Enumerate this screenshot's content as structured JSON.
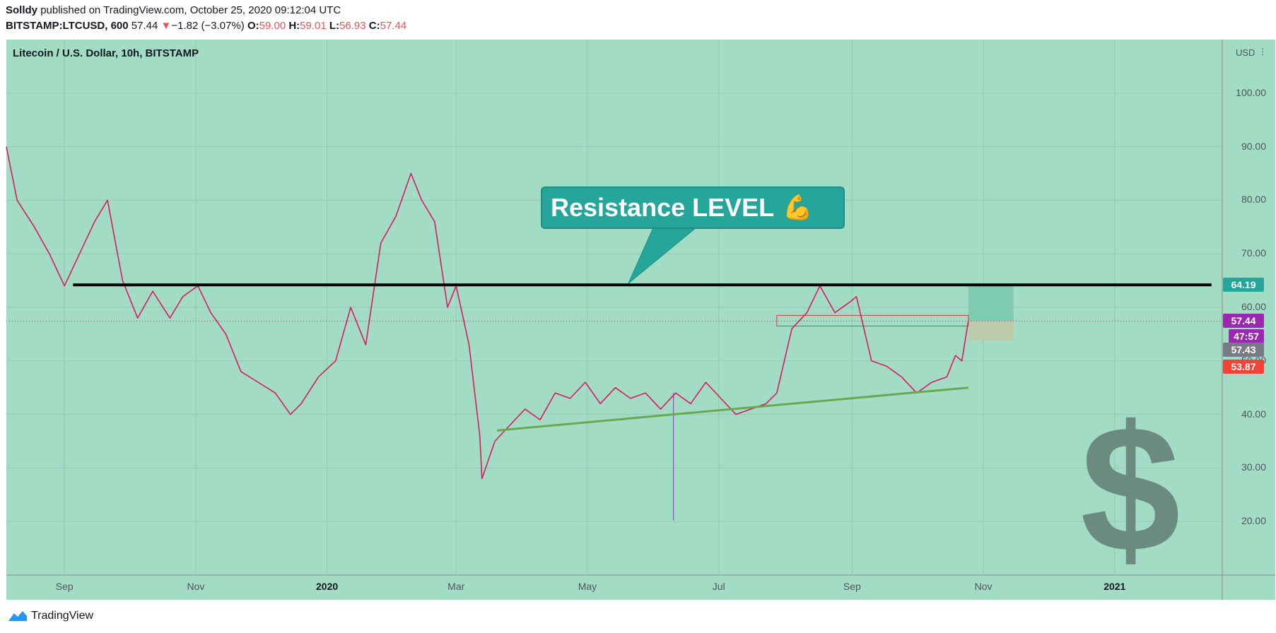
{
  "header": {
    "author": "Solldy",
    "published_text": "published on TradingView.com, October 25, 2020 09:12:04 UTC",
    "symbol": "BITSTAMP:LTCUSD, 600",
    "last": "57.44",
    "change_arrow": "▼",
    "change": "−1.82 (−3.07%)",
    "open_label": "O:",
    "open": "59.00",
    "high_label": "H:",
    "high": "59.01",
    "low_label": "L:",
    "low": "56.93",
    "close_label": "C:",
    "close": "57.44"
  },
  "legend": "Litecoin / U.S. Dollar, 10h, BITSTAMP",
  "annotation": {
    "text": "Resistance LEVEL",
    "emoji": "💪"
  },
  "price_axis": {
    "currency": "USD",
    "settings_icon": "ellipsis-icon",
    "ticks": [
      "100.00",
      "90.00",
      "80.00",
      "70.00",
      "60.00",
      "50.00",
      "40.00",
      "30.00",
      "20.00"
    ]
  },
  "badges": {
    "resistance": "64.19",
    "last_price": "57.44",
    "countdown": "47:57",
    "gray": "57.43",
    "red": "53.87"
  },
  "time_axis": {
    "labels": [
      {
        "text": "Sep",
        "bold": false
      },
      {
        "text": "Nov",
        "bold": false
      },
      {
        "text": "2020",
        "bold": true
      },
      {
        "text": "Mar",
        "bold": false
      },
      {
        "text": "May",
        "bold": false
      },
      {
        "text": "Jul",
        "bold": false
      },
      {
        "text": "Sep",
        "bold": false
      },
      {
        "text": "Nov",
        "bold": false
      },
      {
        "text": "2021",
        "bold": true
      }
    ]
  },
  "watermark_symbol": "$",
  "footer": {
    "brand": "TradingView",
    "icon": "tradingview-logo-icon"
  },
  "colors": {
    "background": "#a3dcc5",
    "resistance_line": "#000000",
    "trend_line": "#6aa84f",
    "candle_line": "#d81b60",
    "accent": "#26a69a",
    "last_price_badge": "#9c27b0",
    "red_badge": "#f44336"
  },
  "chart_data": {
    "type": "line",
    "title": "Litecoin / U.S. Dollar, 10h, BITSTAMP",
    "xlabel": "",
    "ylabel": "USD",
    "ylim": [
      10,
      110
    ],
    "x_range": [
      "2019-08-05",
      "2021-02-20"
    ],
    "series": [
      {
        "name": "LTCUSD",
        "x": [
          "2019-08-05",
          "2019-08-10",
          "2019-08-18",
          "2019-08-25",
          "2019-09-01",
          "2019-09-08",
          "2019-09-15",
          "2019-09-21",
          "2019-09-28",
          "2019-10-05",
          "2019-10-12",
          "2019-10-20",
          "2019-10-26",
          "2019-11-02",
          "2019-11-08",
          "2019-11-15",
          "2019-11-22",
          "2019-11-30",
          "2019-12-08",
          "2019-12-15",
          "2019-12-20",
          "2019-12-28",
          "2020-01-05",
          "2020-01-12",
          "2020-01-19",
          "2020-01-26",
          "2020-02-02",
          "2020-02-09",
          "2020-02-14",
          "2020-02-20",
          "2020-02-26",
          "2020-03-01",
          "2020-03-07",
          "2020-03-12",
          "2020-03-13",
          "2020-03-19",
          "2020-03-26",
          "2020-04-02",
          "2020-04-09",
          "2020-04-16",
          "2020-04-23",
          "2020-04-30",
          "2020-05-07",
          "2020-05-14",
          "2020-05-21",
          "2020-05-28",
          "2020-06-04",
          "2020-06-11",
          "2020-06-18",
          "2020-06-25",
          "2020-07-02",
          "2020-07-09",
          "2020-07-16",
          "2020-07-23",
          "2020-07-28",
          "2020-08-04",
          "2020-08-11",
          "2020-08-17",
          "2020-08-24",
          "2020-08-31",
          "2020-09-03",
          "2020-09-10",
          "2020-09-17",
          "2020-09-24",
          "2020-10-01",
          "2020-10-08",
          "2020-10-15",
          "2020-10-19",
          "2020-10-22",
          "2020-10-25"
        ],
        "y": [
          90,
          80,
          75,
          70,
          64,
          70,
          76,
          80,
          65,
          58,
          63,
          58,
          62,
          64,
          59,
          55,
          48,
          46,
          44,
          40,
          42,
          47,
          50,
          60,
          53,
          72,
          77,
          85,
          80,
          76,
          60,
          64,
          53,
          36,
          28,
          35,
          38,
          41,
          39,
          44,
          43,
          46,
          42,
          45,
          43,
          44,
          41,
          44,
          42,
          46,
          43,
          40,
          41,
          42,
          44,
          56,
          59,
          64,
          59,
          61,
          62,
          50,
          49,
          47,
          44,
          46,
          47,
          51,
          50,
          57.44
        ]
      }
    ],
    "annotations": {
      "resistance_level": 64.19,
      "resistance_label": "Resistance LEVEL",
      "trendline": {
        "from": [
          "2020-03-20",
          37
        ],
        "to": [
          "2020-10-25",
          45
        ]
      },
      "entry_zone": [
        56.5,
        58.5
      ],
      "last_price": 57.44,
      "stop_level": 53.87,
      "spike_low": 20.2
    }
  }
}
